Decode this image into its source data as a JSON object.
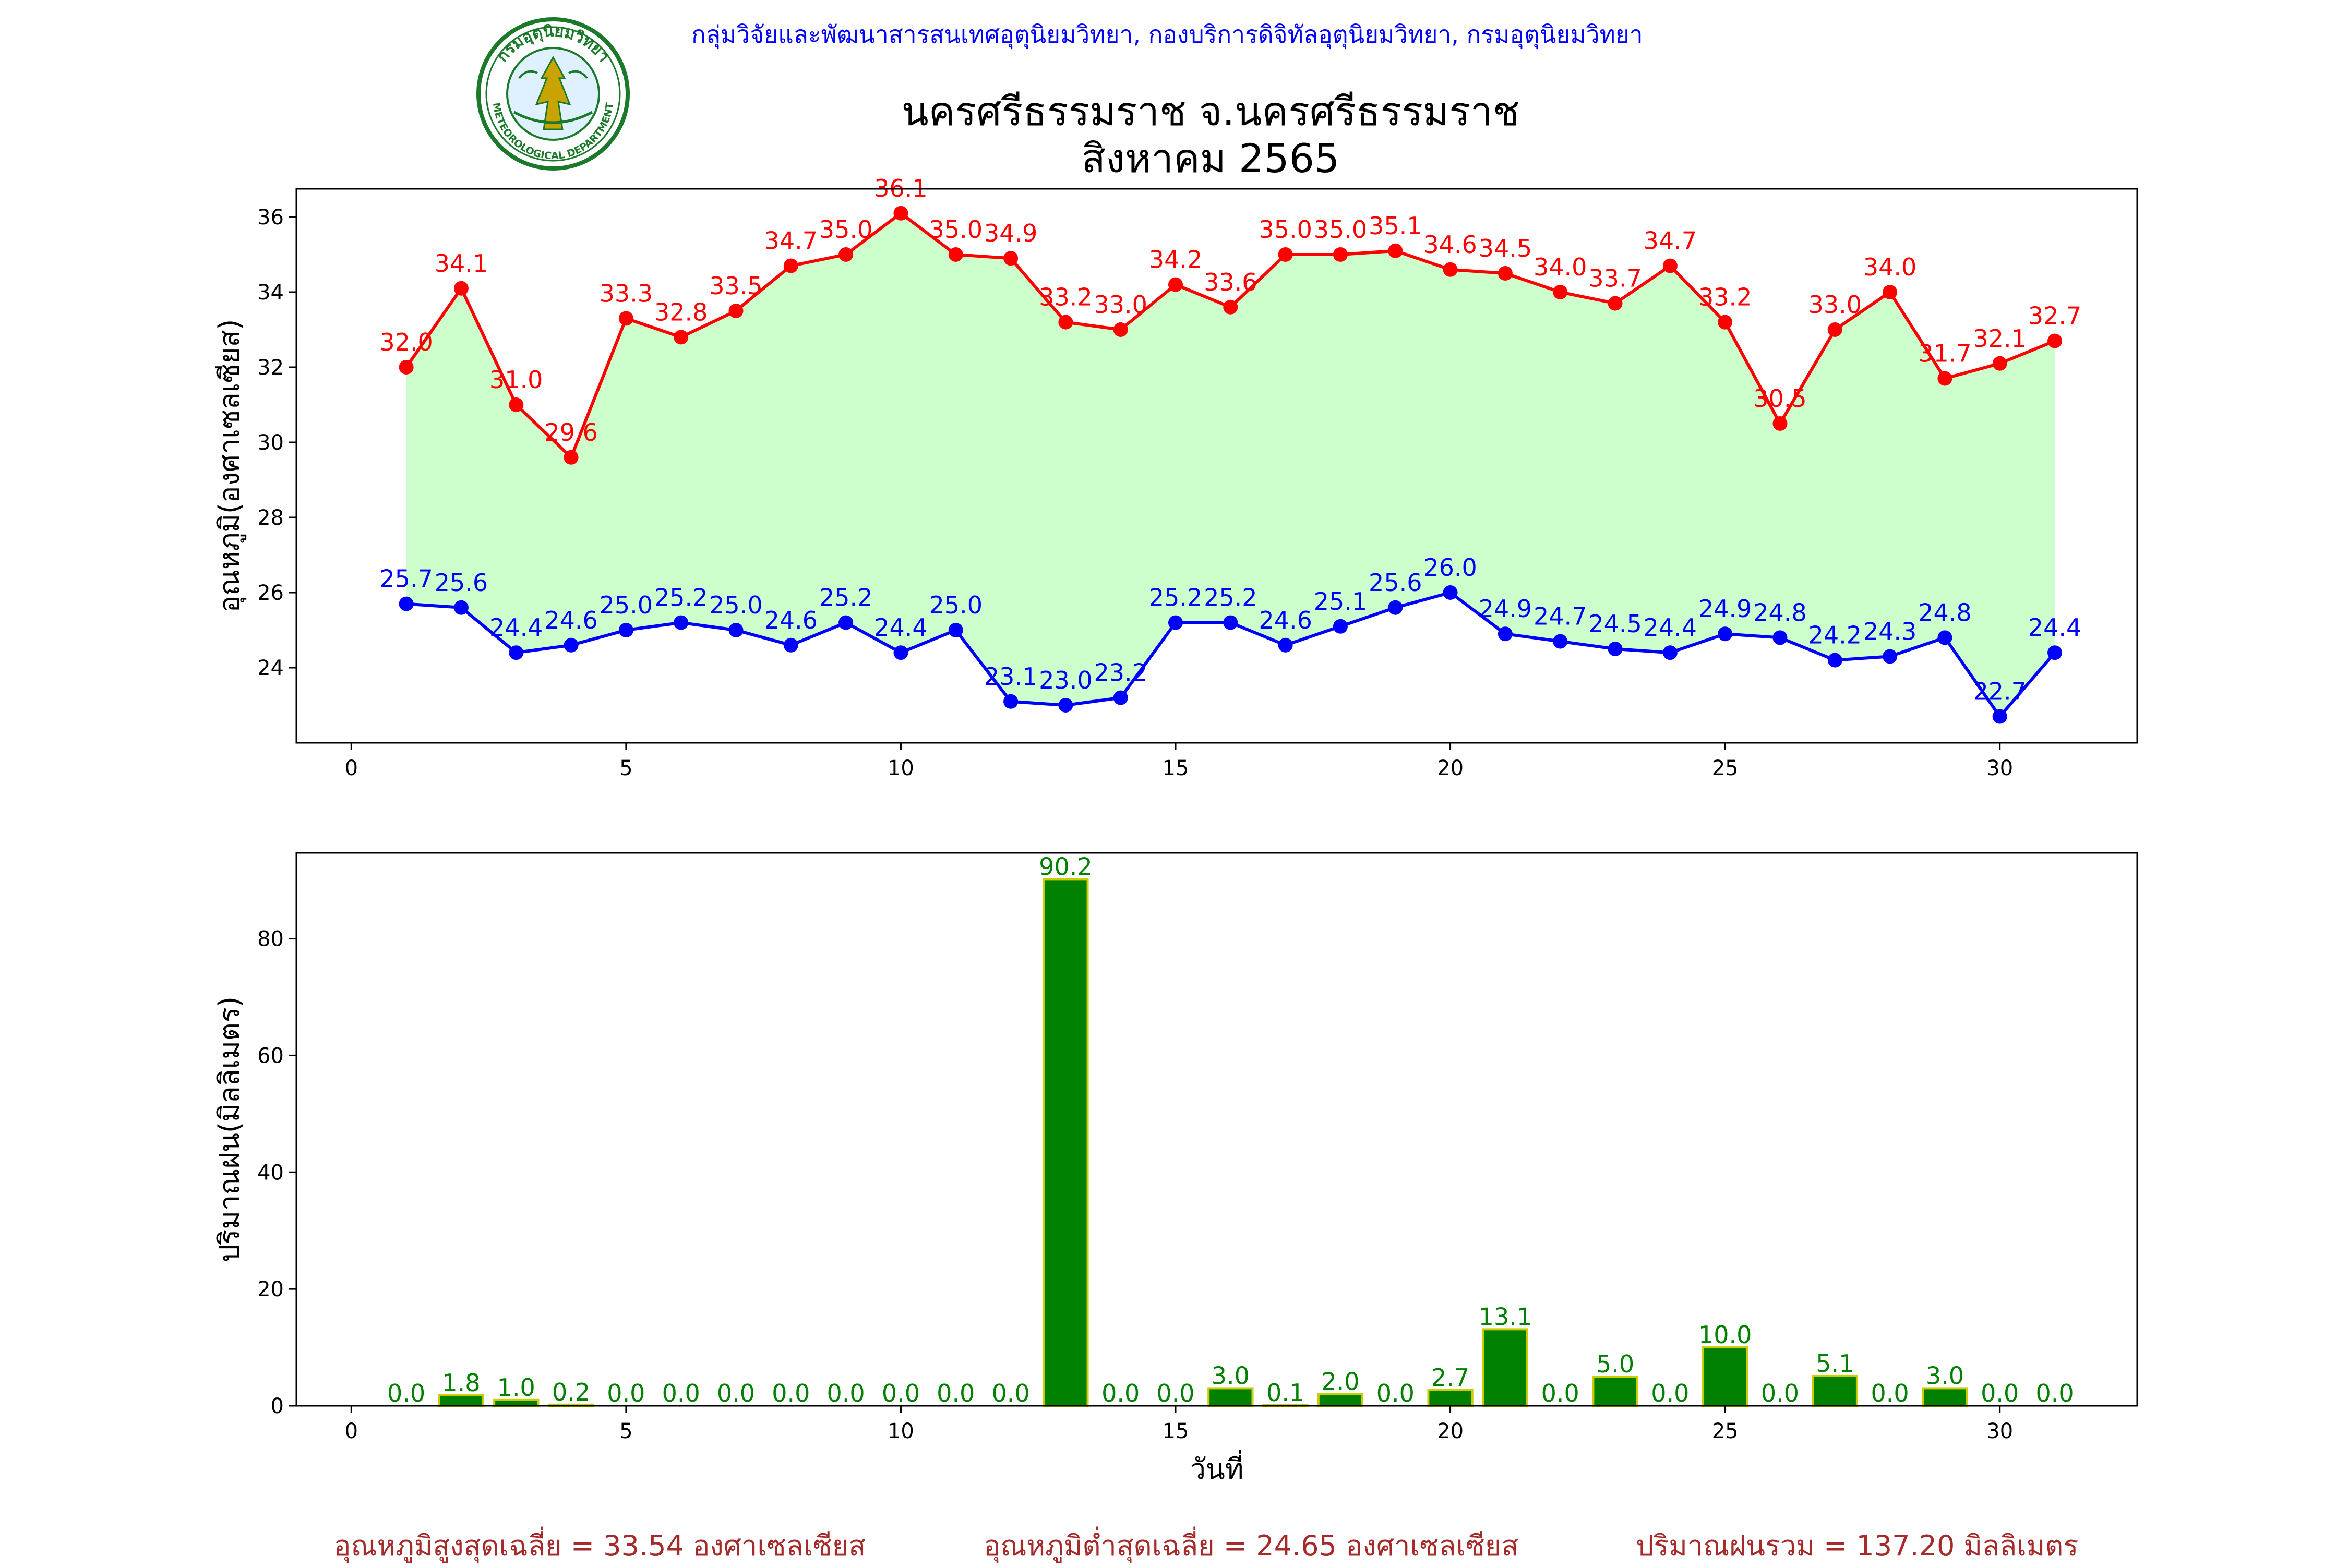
{
  "header": {
    "organization": "กลุ่มวิจัยและพัฒนาสารสนเทศอุตุนิยมวิทยา, กองบริการดิจิทัลอุตุนิยมวิทยา, กรมอุตุนิยมวิทยา",
    "logo_text_top": "กรมอุตุนิยมวิทยา",
    "logo_text_bottom": "METEOROLOGICAL DEPARTMENT",
    "title_line1": "นครศรีธรรมราช จ.นครศรีธรรมราช",
    "title_line2": "สิงหาคม 2565"
  },
  "colors": {
    "max_line": "#ff0000",
    "min_line": "#0000ff",
    "fill_band": "#ccffcc",
    "rain_bar": "#008000",
    "rain_bar_edge": "#cccc00",
    "rain_label": "#008000",
    "footer_text": "#a52a2a",
    "header_text": "#0000ff"
  },
  "chart_data": [
    {
      "type": "line",
      "ylabel": "อุณหภูมิ(องศาเซลเซียส)",
      "xlabel": "",
      "xlim": [
        -1,
        32.5
      ],
      "ylim": [
        22.0,
        36.75
      ],
      "xticks": [
        0,
        5,
        10,
        15,
        20,
        25,
        30
      ],
      "yticks": [
        24,
        26,
        28,
        30,
        32,
        34,
        36
      ],
      "fill_between": true,
      "x": [
        1,
        2,
        3,
        4,
        5,
        6,
        7,
        8,
        9,
        10,
        11,
        12,
        13,
        14,
        15,
        16,
        17,
        18,
        19,
        20,
        21,
        22,
        23,
        24,
        25,
        26,
        27,
        28,
        29,
        30,
        31
      ],
      "series": [
        {
          "role": "max",
          "values": [
            32.0,
            34.1,
            31.0,
            29.6,
            33.3,
            32.8,
            33.5,
            34.7,
            35.0,
            36.1,
            35.0,
            34.9,
            33.2,
            33.0,
            34.2,
            33.6,
            35.0,
            35.0,
            35.1,
            34.6,
            34.5,
            34.0,
            33.7,
            34.7,
            33.2,
            30.5,
            33.0,
            34.0,
            31.7,
            32.1,
            32.7
          ]
        },
        {
          "role": "min",
          "values": [
            25.7,
            25.6,
            24.4,
            24.6,
            25.0,
            25.2,
            25.0,
            24.6,
            25.2,
            24.4,
            25.0,
            23.1,
            23.0,
            23.2,
            25.2,
            25.2,
            24.6,
            25.1,
            25.6,
            26.0,
            24.9,
            24.7,
            24.5,
            24.4,
            24.9,
            24.8,
            24.2,
            24.3,
            24.8,
            22.7,
            24.4
          ]
        }
      ]
    },
    {
      "type": "bar",
      "ylabel": "ปริมาณฝน(มิลลิเมตร)",
      "xlabel": "วันที่",
      "xlim": [
        -1,
        32.5
      ],
      "ylim": [
        0,
        94.7
      ],
      "xticks": [
        0,
        5,
        10,
        15,
        20,
        25,
        30
      ],
      "yticks": [
        0,
        20,
        40,
        60,
        80
      ],
      "x": [
        1,
        2,
        3,
        4,
        5,
        6,
        7,
        8,
        9,
        10,
        11,
        12,
        13,
        14,
        15,
        16,
        17,
        18,
        19,
        20,
        21,
        22,
        23,
        24,
        25,
        26,
        27,
        28,
        29,
        30,
        31
      ],
      "values": [
        0.0,
        1.8,
        1.0,
        0.2,
        0.0,
        0.0,
        0.0,
        0.0,
        0.0,
        0.0,
        0.0,
        0.0,
        90.2,
        0.0,
        0.0,
        3.0,
        0.1,
        2.0,
        0.0,
        2.7,
        13.1,
        0.0,
        5.0,
        0.0,
        10.0,
        0.0,
        5.1,
        0.0,
        3.0,
        0.0,
        0.0
      ]
    }
  ],
  "footer": {
    "avg_max": "อุณหภูมิสูงสุดเฉลี่ย = 33.54 องศาเซลเซียส",
    "avg_min": "อุณหภูมิต่ำสุดเฉลี่ย = 24.65 องศาเซลเซียส",
    "total_rain": "ปริมาณฝนรวม = 137.20 มิลลิเมตร"
  }
}
